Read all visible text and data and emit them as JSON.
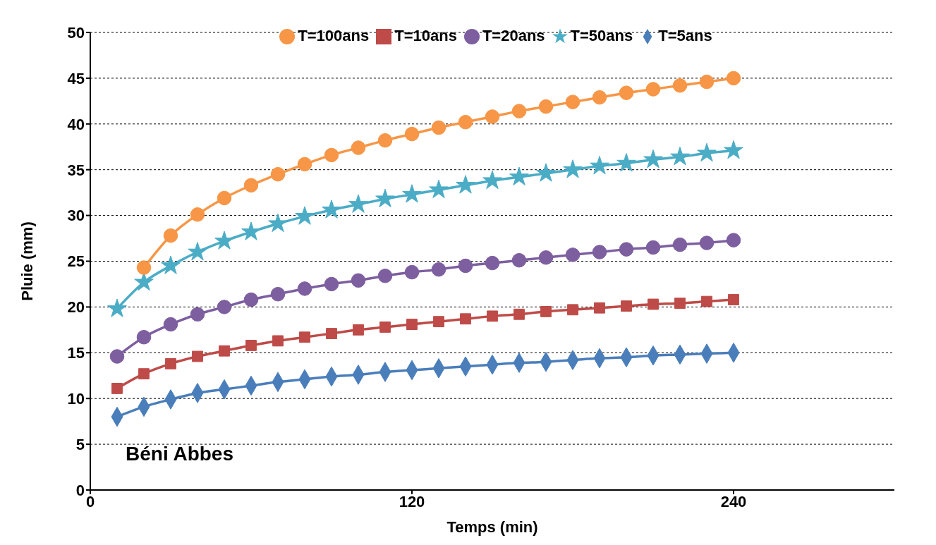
{
  "chart_data": {
    "type": "line",
    "xlabel": "Temps (min)",
    "ylabel": "Pluie (mm)",
    "annotations": [
      "Béni Abbes"
    ],
    "x": [
      10,
      20,
      30,
      40,
      50,
      60,
      70,
      80,
      90,
      100,
      110,
      120,
      130,
      140,
      150,
      160,
      170,
      180,
      190,
      200,
      210,
      220,
      230,
      240
    ],
    "xlim": [
      0,
      300
    ],
    "xticks": [
      0,
      120,
      240
    ],
    "ylim": [
      0,
      50
    ],
    "yticks": [
      0,
      5,
      10,
      15,
      20,
      25,
      30,
      35,
      40,
      45,
      50
    ],
    "grid": "y",
    "legend": "top",
    "series": [
      {
        "name": "T=5ans",
        "color": "#4a7ebb",
        "marker": "diamond",
        "values": [
          8.0,
          9.1,
          9.9,
          10.6,
          11.0,
          11.4,
          11.8,
          12.1,
          12.4,
          12.6,
          12.9,
          13.1,
          13.3,
          13.5,
          13.7,
          13.9,
          14.0,
          14.2,
          14.4,
          14.5,
          14.7,
          14.8,
          14.9,
          15.0
        ]
      },
      {
        "name": "T=10ans",
        "color": "#be4b48",
        "marker": "square",
        "values": [
          11.1,
          12.7,
          13.8,
          14.6,
          15.2,
          15.8,
          16.3,
          16.7,
          17.1,
          17.5,
          17.8,
          18.1,
          18.4,
          18.7,
          19.0,
          19.2,
          19.5,
          19.7,
          19.9,
          20.1,
          20.3,
          20.4,
          20.6,
          20.8
        ]
      },
      {
        "name": "T=20ans",
        "color": "#7d5fa0",
        "marker": "circle",
        "values": [
          14.6,
          16.7,
          18.1,
          19.2,
          20.0,
          20.8,
          21.4,
          22.0,
          22.5,
          22.9,
          23.4,
          23.8,
          24.1,
          24.5,
          24.8,
          25.1,
          25.4,
          25.7,
          26.0,
          26.3,
          26.5,
          26.8,
          27.0,
          27.3
        ]
      },
      {
        "name": "T=50ans",
        "color": "#4bacc6",
        "marker": "star",
        "values": [
          19.8,
          22.7,
          24.5,
          26.0,
          27.2,
          28.2,
          29.1,
          29.9,
          30.6,
          31.2,
          31.8,
          32.3,
          32.8,
          33.3,
          33.8,
          34.2,
          34.6,
          35.0,
          35.4,
          35.7,
          36.1,
          36.4,
          36.8,
          37.1
        ]
      },
      {
        "name": "T=100ans",
        "color": "#f79646",
        "marker": "circle",
        "values": [
          null,
          24.3,
          27.8,
          30.1,
          31.9,
          33.3,
          34.5,
          35.6,
          36.6,
          37.4,
          38.2,
          38.9,
          39.6,
          40.2,
          40.8,
          41.4,
          41.9,
          42.4,
          42.9,
          43.4,
          43.8,
          44.2,
          44.6,
          45.0
        ]
      }
    ]
  }
}
